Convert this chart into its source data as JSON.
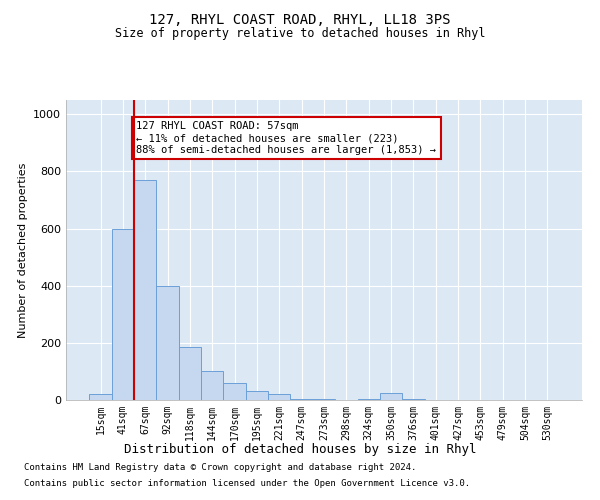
{
  "title": "127, RHYL COAST ROAD, RHYL, LL18 3PS",
  "subtitle": "Size of property relative to detached houses in Rhyl",
  "xlabel": "Distribution of detached houses by size in Rhyl",
  "ylabel": "Number of detached properties",
  "bar_labels": [
    "15sqm",
    "41sqm",
    "67sqm",
    "92sqm",
    "118sqm",
    "144sqm",
    "170sqm",
    "195sqm",
    "221sqm",
    "247sqm",
    "273sqm",
    "298sqm",
    "324sqm",
    "350sqm",
    "376sqm",
    "401sqm",
    "427sqm",
    "453sqm",
    "479sqm",
    "504sqm",
    "530sqm"
  ],
  "bar_values": [
    20,
    600,
    770,
    400,
    185,
    100,
    60,
    30,
    20,
    5,
    5,
    0,
    5,
    25,
    5,
    0,
    0,
    0,
    0,
    0,
    0
  ],
  "bar_color": "#c5d8f0",
  "bar_edgecolor": "#6a9fd8",
  "vline_x": 1.5,
  "vline_color": "#cc0000",
  "annotation_text": "127 RHYL COAST ROAD: 57sqm\n← 11% of detached houses are smaller (223)\n88% of semi-detached houses are larger (1,853) →",
  "annotation_box_facecolor": "#ffffff",
  "annotation_box_edgecolor": "#cc0000",
  "ylim": [
    0,
    1050
  ],
  "yticks": [
    0,
    200,
    400,
    600,
    800,
    1000
  ],
  "footnote1": "Contains HM Land Registry data © Crown copyright and database right 2024.",
  "footnote2": "Contains public sector information licensed under the Open Government Licence v3.0.",
  "plot_bg_color": "#dce9f5"
}
